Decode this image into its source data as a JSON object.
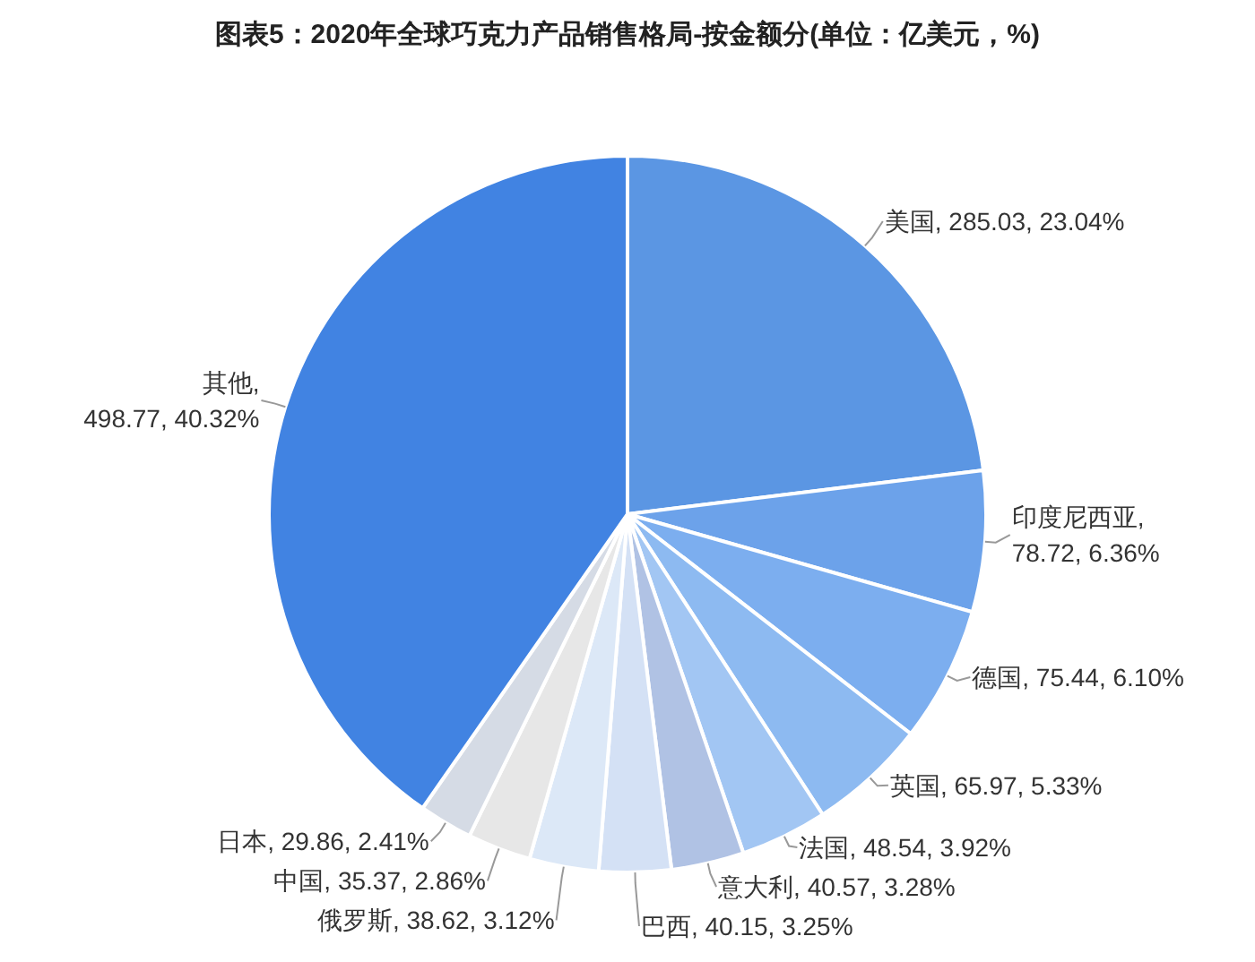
{
  "chart_data": {
    "type": "pie",
    "title": "图表5：2020年全球巧克力产品销售格局-按金额分(单位：亿美元，%)",
    "categories": [
      "美国",
      "印度尼西亚",
      "德国",
      "英国",
      "法国",
      "意大利",
      "巴西",
      "俄罗斯",
      "中国",
      "日本",
      "其他"
    ],
    "values": [
      285.03,
      78.72,
      75.44,
      65.97,
      48.54,
      40.57,
      40.15,
      38.62,
      35.37,
      29.86,
      498.77
    ],
    "value_labels": [
      ", 285.03, 23.04%",
      ", 78.72, 6.36%",
      ", 75.44, 6.10%",
      ", 65.97, 5.33%",
      ", 48.54, 3.92%",
      ", 40.57, 3.28%",
      ", 40.15, 3.25%",
      ", 38.62, 3.12%",
      ", 35.37, 2.86%",
      ", 29.86, 2.41%",
      ", 498.77, 40.32%"
    ],
    "colors": [
      "#5b96e3",
      "#6ca2ea",
      "#7caeef",
      "#8dbaf1",
      "#a2c6f3",
      "#b0c2e4",
      "#d4e1f5",
      "#dce8f7",
      "#e7e7e7",
      "#d5dbe5",
      "#4183e2"
    ]
  }
}
